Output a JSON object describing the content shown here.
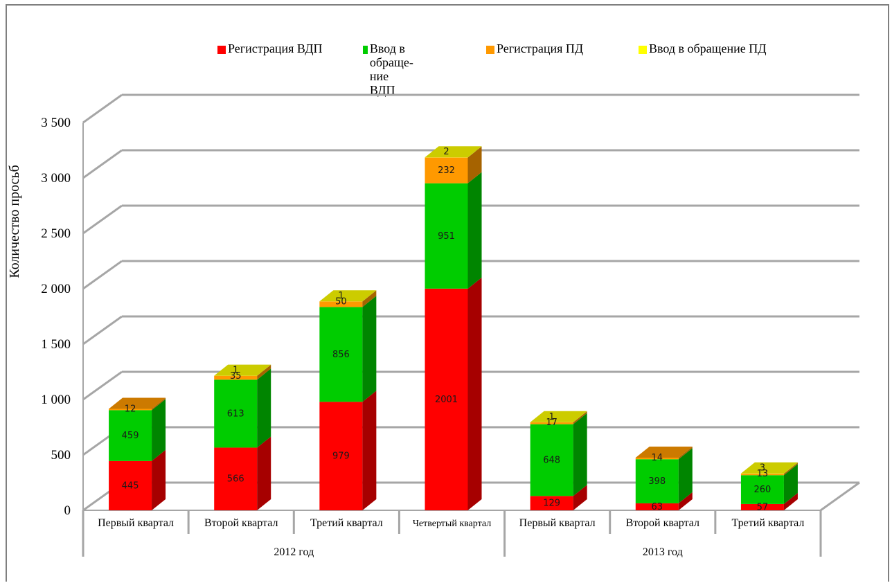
{
  "chart_data": {
    "type": "bar",
    "stacked": true,
    "three_d": true,
    "ylabel": "Количество просьб",
    "ylim": [
      0,
      3500
    ],
    "yticks": [
      "0",
      "500",
      "1 000",
      "1 500",
      "2 000",
      "2 500",
      "3 000",
      "3 500"
    ],
    "categories": [
      "Первый квартал",
      "Второй квартал",
      "Третий квартал",
      "Четвертый квартал",
      "Первый квартал",
      "Второй квартал",
      "Третий квартал"
    ],
    "groups": [
      {
        "label": "2012 год",
        "count": 4
      },
      {
        "label": "2013 год",
        "count": 3
      }
    ],
    "series": [
      {
        "name": "Регистрация ВДП",
        "color": "#ff0000",
        "values": [
          445,
          566,
          979,
          2001,
          129,
          63,
          57
        ]
      },
      {
        "name": "Ввод в обраще-\nние ВДП",
        "color": "#00cc00",
        "values": [
          459,
          613,
          856,
          951,
          648,
          398,
          260
        ]
      },
      {
        "name": "Регистрация ПД",
        "color": "#ff9900",
        "values": [
          12,
          35,
          50,
          232,
          17,
          14,
          13
        ]
      },
      {
        "name": "Ввод в обращение ПД",
        "color": "#ffff00",
        "values": [
          0,
          1,
          1,
          2,
          1,
          0,
          3
        ]
      }
    ],
    "legend_position": "top",
    "grid": true
  }
}
